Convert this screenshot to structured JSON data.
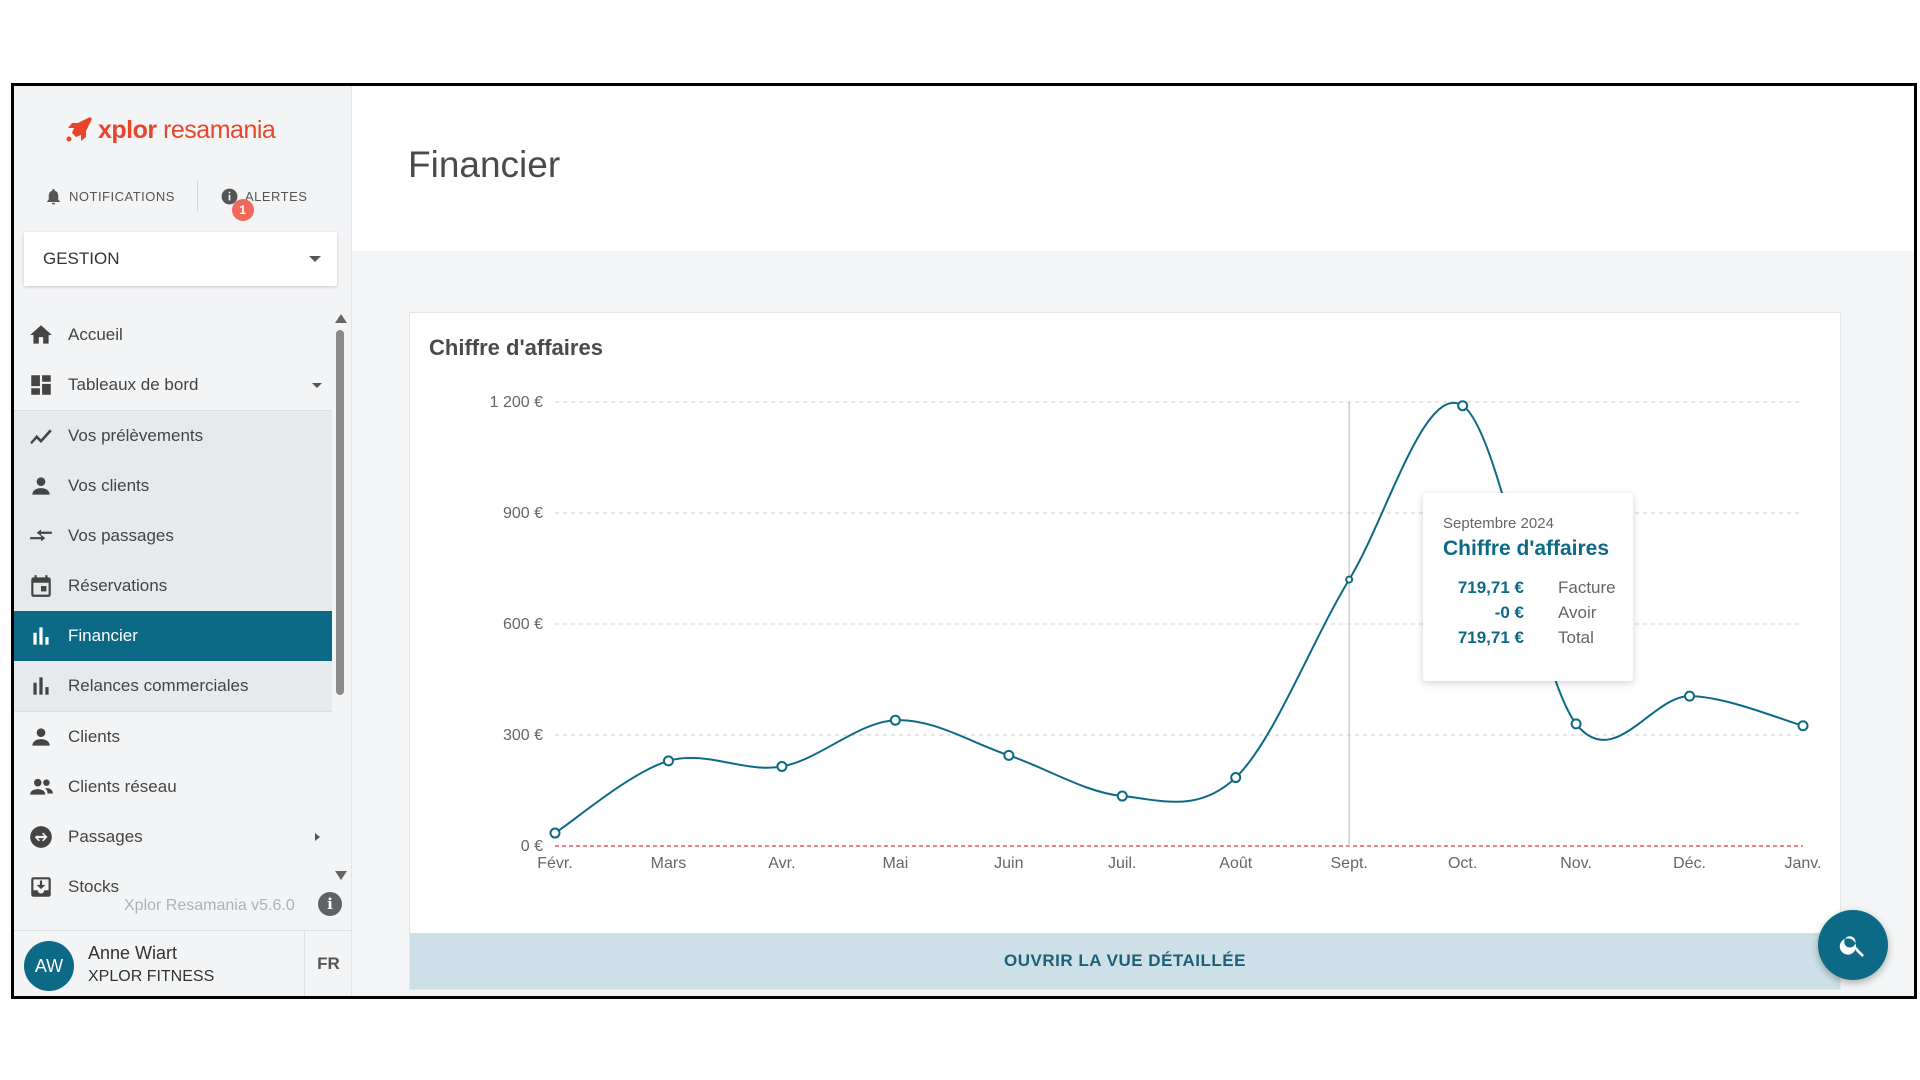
{
  "app": {
    "logo_text_x": "xplor",
    "logo_text_r": "resamania"
  },
  "topbar": {
    "notifications_label": "NOTIFICATIONS",
    "alerts_label": "ALERTES",
    "alerts_count": "1"
  },
  "section_select": {
    "value": "GESTION"
  },
  "sidebar": {
    "items": [
      {
        "label": "Accueil",
        "icon": "home-icon"
      },
      {
        "label": "Tableaux de bord",
        "icon": "dashboard-icon"
      },
      {
        "label": "Vos prélèvements",
        "icon": "trend-icon"
      },
      {
        "label": "Vos clients",
        "icon": "person-icon"
      },
      {
        "label": "Vos passages",
        "icon": "swap-icon"
      },
      {
        "label": "Réservations",
        "icon": "calendar-icon"
      },
      {
        "label": "Financier",
        "icon": "bar-chart-icon"
      },
      {
        "label": "Relances commerciales",
        "icon": "bar-chart-icon"
      },
      {
        "label": "Clients",
        "icon": "person-icon"
      },
      {
        "label": "Clients réseau",
        "icon": "people-icon"
      },
      {
        "label": "Passages",
        "icon": "sync-icon"
      },
      {
        "label": "Stocks",
        "icon": "stock-icon"
      }
    ],
    "version": "Xplor Resamania v5.6.0"
  },
  "user": {
    "initials": "AW",
    "name": "Anne Wiart",
    "organization": "XPLOR FITNESS",
    "language": "FR"
  },
  "page": {
    "title": "Financier"
  },
  "card": {
    "title": "Chiffre d'affaires",
    "cta_label": "OUVRIR LA VUE DÉTAILLÉE"
  },
  "tooltip": {
    "period": "Septembre 2024",
    "title": "Chiffre d'affaires",
    "rows": [
      {
        "value": "719,71 €",
        "label": "Facture"
      },
      {
        "value": "-0 €",
        "label": "Avoir"
      },
      {
        "value": "719,71 €",
        "label": "Total"
      }
    ]
  },
  "colors": {
    "accent": "#0d6a86",
    "zero_line": "#e53935"
  },
  "chart_data": {
    "type": "line",
    "title": "Chiffre d'affaires",
    "categories": [
      "Févr.",
      "Mars",
      "Avr.",
      "Mai",
      "Juin",
      "Juil.",
      "Août",
      "Sept.",
      "Oct.",
      "Nov.",
      "Déc.",
      "Janv."
    ],
    "series": [
      {
        "values": [
          35,
          230,
          215,
          340,
          245,
          135,
          185,
          720,
          1190,
          330,
          405,
          325
        ]
      }
    ],
    "yticks": [
      "0 €",
      "300 €",
      "600 €",
      "900 €",
      "1 200 €"
    ],
    "ytick_values": [
      0,
      300,
      600,
      900,
      1200
    ],
    "ylim": [
      0,
      1200
    ],
    "grid": true,
    "highlight_index": 7
  }
}
